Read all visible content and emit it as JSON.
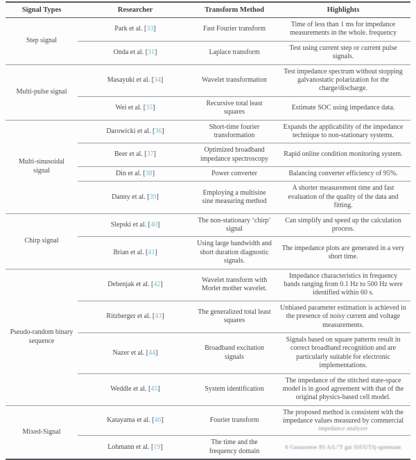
{
  "table": {
    "header": {
      "columns": [
        "Signal Types",
        "Researcher",
        "Transform Method",
        "Highlights"
      ]
    },
    "groups": [
      {
        "signal": "Step signal",
        "rows": [
          {
            "researcher": "Park et al.",
            "ref": "33",
            "method": "Fast Fourier transform",
            "highlight": "Time of less than 1 ms for impedance measurements in the whole. frequency",
            "highlight_blurred": ""
          },
          {
            "researcher": "Onda et al.",
            "ref": "31",
            "method": "Laplace transform",
            "highlight": "Test using current step or current pulse signals.",
            "highlight_blurred": ""
          }
        ]
      },
      {
        "signal": "Multi-pulse signal",
        "rows": [
          {
            "researcher": "Masayuki et al.",
            "ref": "34",
            "method": "Wavelet transformation",
            "highlight": "Test impedance spectrum without stopping galvanostatic polarization for the charge/discharge.",
            "highlight_blurred": ""
          },
          {
            "researcher": "Wei et al.",
            "ref": "35",
            "method": "Recursive total least squares",
            "highlight": "Estimate SOC using impedance data.",
            "highlight_blurred": ""
          }
        ]
      },
      {
        "signal": "Multi-sinusoidal signal",
        "rows": [
          {
            "researcher": "Darowicki et al.",
            "ref": "36",
            "method": "Short-time fourier transformation",
            "highlight": "Expands the applicability of the impedance technique to non-stationary systems.",
            "highlight_blurred": ""
          },
          {
            "researcher": "Beer et al.",
            "ref": "37",
            "method": "Optimized broadband impedance spectroscopy",
            "highlight": "Rapid online condition monitoring system.",
            "highlight_blurred": ""
          },
          {
            "researcher": "Din et al.",
            "ref": "38",
            "method": "Power converter",
            "highlight": "Balancing converter efficiency of 95%.",
            "highlight_blurred": ""
          },
          {
            "researcher": "Danny et al.",
            "ref": "39",
            "method": "Employing a multisine sine measuring method",
            "highlight": "A shorter measurement time and fast evaluation of the quality of the data and fitting.",
            "highlight_blurred": ""
          }
        ]
      },
      {
        "signal": "Chirp signal",
        "rows": [
          {
            "researcher": "Slepski et al.",
            "ref": "40",
            "method": "The non-stationary ‘chirp’ signal",
            "highlight": "Can simplify and speed up the calculation process.",
            "highlight_blurred": ""
          },
          {
            "researcher": "Brian et al.",
            "ref": "41",
            "method": "Using large bandwidth and short duration diagnostic signals.",
            "highlight": "The impedance plots are generated in a very short time.",
            "highlight_blurred": ""
          }
        ]
      },
      {
        "signal": "Pseudo-random binary sequence",
        "rows": [
          {
            "researcher": "Debenjak et al.",
            "ref": "42",
            "method": "Wavelet transform with Morlet mother wavelet.",
            "highlight": "Impedance characteristics in frequency bands ranging from 0.1 Hz to 500 Hz were identified within 60 s.",
            "highlight_blurred": ""
          },
          {
            "researcher": "Ritzberger et al.",
            "ref": "43",
            "method": "The generalized total least squares",
            "highlight": "Unbiased parameter estimation is achieved in the presence of noisy current and voltage measurements.",
            "highlight_blurred": ""
          },
          {
            "researcher": "Nazer et al.",
            "ref": "44",
            "method": "Broadband excitation signals",
            "highlight": "Signals based on square patterns result in correct broadband recognition and are particularly suitable for electronic implementations.",
            "highlight_blurred": ""
          },
          {
            "researcher": "Weddle et al.",
            "ref": "45",
            "method": "System identification",
            "highlight": "The impedance of the stitched state-space model is in good agreement with that of the original physics-based cell model.",
            "highlight_blurred": ""
          }
        ]
      },
      {
        "signal": "Mixed-Signal",
        "rows": [
          {
            "researcher": "Katayama et al.",
            "ref": "46",
            "method": "Fourier transform",
            "highlight": "The proposed method is consistent with the impedance values measured by commercial",
            "highlight_blurred": "impedance analyzer"
          },
          {
            "researcher": "Lohmann et al.",
            "ref": "19",
            "method": "The time and the frequency domain",
            "highlight": "",
            "highlight_blurred": "0 Gassasonw 93 A/L/'T gat fitUUTJj-apnnsaan"
          }
        ]
      }
    ]
  },
  "colors": {
    "citation_link": "#7ab7d6",
    "body_text": "#47484c",
    "rule_heavy": "#55575b",
    "rule_light": "#9aa0a3"
  }
}
